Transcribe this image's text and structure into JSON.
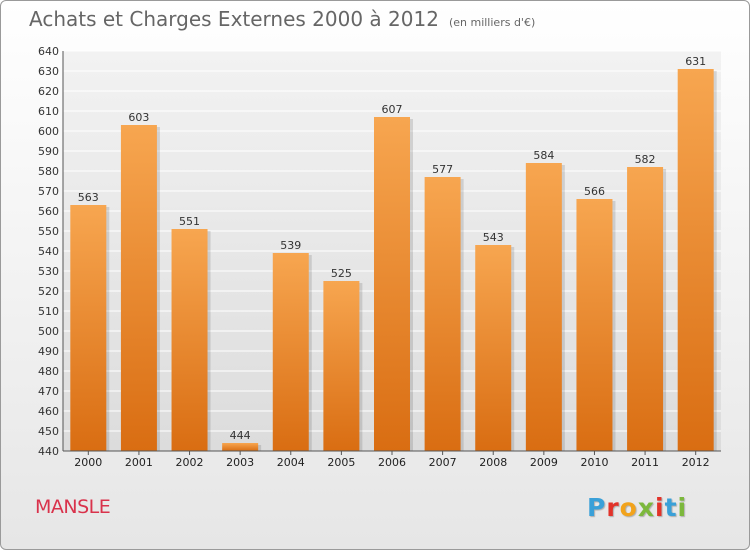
{
  "header": {
    "title": "Achats et Charges Externes 2000 à 2012",
    "subtitle": "(en milliers d'€)"
  },
  "footer": {
    "place": "MANSLE",
    "logo": "Proxiti"
  },
  "colors": {
    "bar_light": "#f7a650",
    "bar_dark": "#d96d12",
    "grid": "#ffffff",
    "place_text": "#d9324b"
  },
  "chart_data": {
    "type": "bar",
    "title": "Achats et Charges Externes 2000 à 2012",
    "subtitle": "(en milliers d'€)",
    "xlabel": "",
    "ylabel": "",
    "categories": [
      "2000",
      "2001",
      "2002",
      "2003",
      "2004",
      "2005",
      "2006",
      "2007",
      "2008",
      "2009",
      "2010",
      "2011",
      "2012"
    ],
    "values": [
      563,
      603,
      551,
      444,
      539,
      525,
      607,
      577,
      543,
      584,
      566,
      582,
      631
    ],
    "ylim": [
      440,
      640
    ],
    "yticks": [
      440,
      450,
      460,
      470,
      480,
      490,
      500,
      510,
      520,
      530,
      540,
      550,
      560,
      570,
      580,
      590,
      600,
      610,
      620,
      630,
      640
    ],
    "grid": true,
    "legend": "none"
  }
}
